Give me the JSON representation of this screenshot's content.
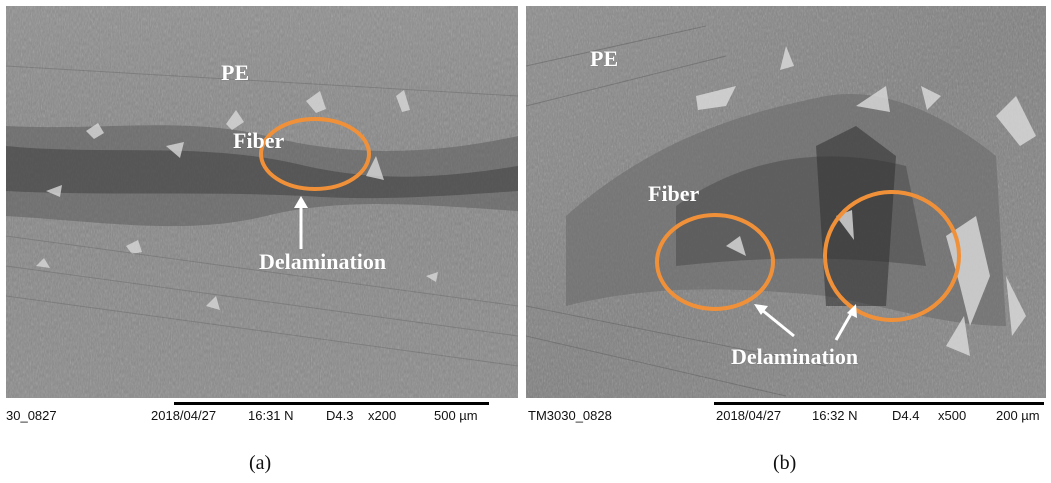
{
  "colors": {
    "circle": "#F0913A",
    "label": "#ffffff",
    "micrograph_base": "#8c8c8c"
  },
  "panels": [
    {
      "id": "a",
      "caption": "(a)",
      "labels": {
        "pe": "PE",
        "fiber": "Fiber",
        "delamination": "Delamination"
      },
      "info": {
        "id": "30_0827",
        "date": "2018/04/27",
        "time": "16:31 N",
        "dist": "D4.3",
        "mag": "x200",
        "scale": "500 µm"
      }
    },
    {
      "id": "b",
      "caption": "(b)",
      "labels": {
        "pe": "PE",
        "fiber": "Fiber",
        "delamination": "Delamination"
      },
      "info": {
        "id": "TM3030_0828",
        "date": "2018/04/27",
        "time": "16:32 N",
        "dist": "D4.4",
        "mag": "x500",
        "scale": "200 µm"
      }
    }
  ]
}
